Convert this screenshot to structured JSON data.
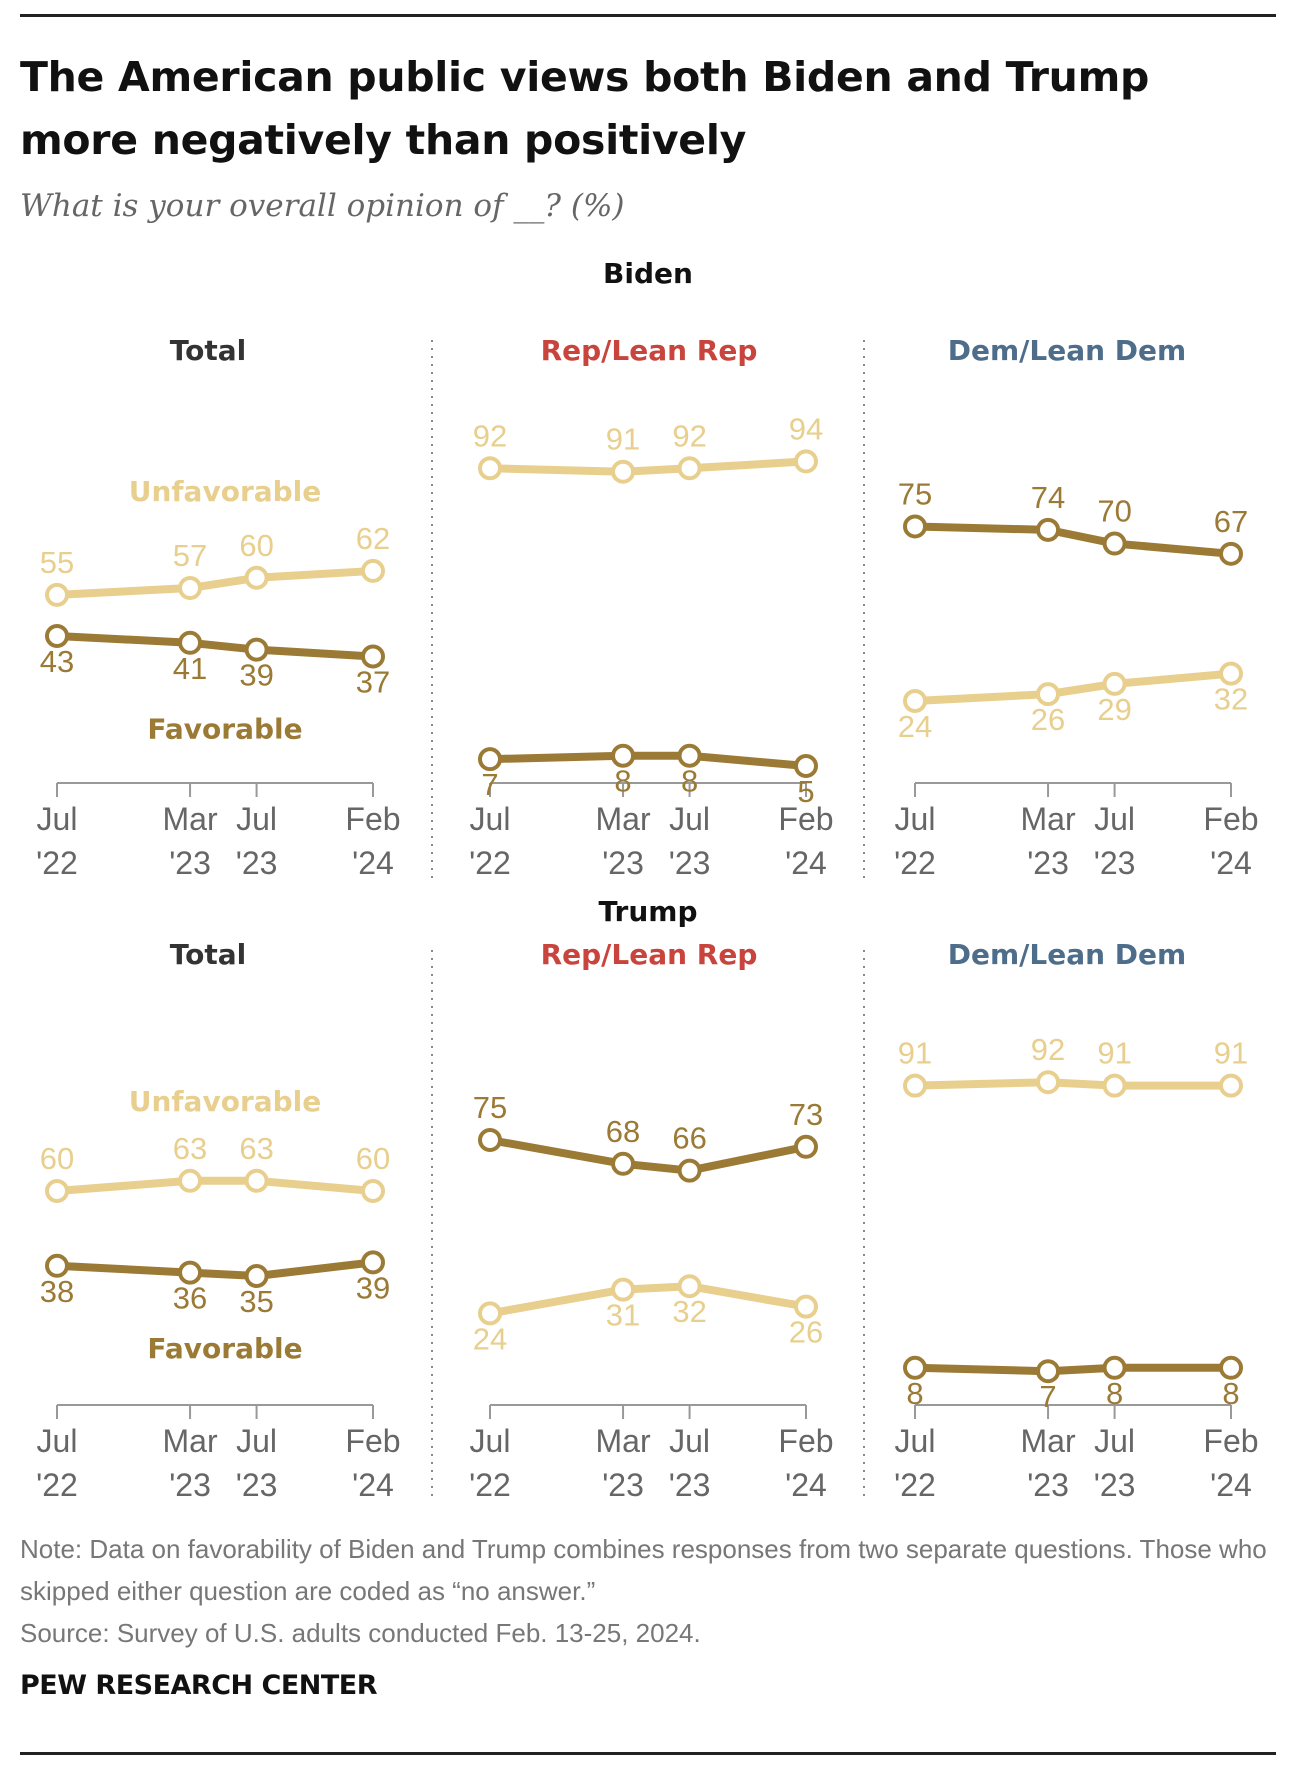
{
  "title": "The American public views both Biden and Trump more negatively than positively",
  "subtitle": "What is your overall opinion of __? (%)",
  "note": "Note: Data on favorability of Biden and Trump combines responses from two separate questions. Those who skipped either question are coded as “no answer.”",
  "source": "Source: Survey of U.S. adults conducted Feb. 13-25, 2024.",
  "brand": "PEW RESEARCH CENTER",
  "colors": {
    "unfavorable": "#e8cf8e",
    "favorable": "#9b7a35",
    "rep": "#c8443c",
    "dem": "#4e6d8a",
    "axis": "#999999",
    "label": "#333333"
  },
  "chart_data": [
    {
      "type": "line",
      "title": "Biden",
      "x": [
        "Jul '22",
        "Mar '23",
        "Jul '23",
        "Feb '24"
      ],
      "x_months": [
        0,
        8,
        12,
        19
      ],
      "panels": [
        {
          "label": "Total",
          "group": "total",
          "series": [
            {
              "name": "Unfavorable",
              "values": [
                55,
                57,
                60,
                62
              ]
            },
            {
              "name": "Favorable",
              "values": [
                43,
                41,
                39,
                37
              ]
            }
          ]
        },
        {
          "label": "Rep/Lean Rep",
          "group": "rep",
          "series": [
            {
              "name": "Unfavorable",
              "values": [
                92,
                91,
                92,
                94
              ]
            },
            {
              "name": "Favorable",
              "values": [
                7,
                8,
                8,
                5
              ]
            }
          ]
        },
        {
          "label": "Dem/Lean Dem",
          "group": "dem",
          "series": [
            {
              "name": "Unfavorable",
              "values": [
                24,
                26,
                29,
                32
              ]
            },
            {
              "name": "Favorable",
              "values": [
                75,
                74,
                70,
                67
              ]
            }
          ]
        }
      ]
    },
    {
      "type": "line",
      "title": "Trump",
      "x": [
        "Jul '22",
        "Mar '23",
        "Jul '23",
        "Feb '24"
      ],
      "x_months": [
        0,
        8,
        12,
        19
      ],
      "panels": [
        {
          "label": "Total",
          "group": "total",
          "series": [
            {
              "name": "Unfavorable",
              "values": [
                60,
                63,
                63,
                60
              ]
            },
            {
              "name": "Favorable",
              "values": [
                38,
                36,
                35,
                39
              ]
            }
          ]
        },
        {
          "label": "Rep/Lean Rep",
          "group": "rep",
          "series": [
            {
              "name": "Unfavorable",
              "values": [
                24,
                31,
                32,
                26
              ]
            },
            {
              "name": "Favorable",
              "values": [
                75,
                68,
                66,
                73
              ]
            }
          ]
        },
        {
          "label": "Dem/Lean Dem",
          "group": "dem",
          "series": [
            {
              "name": "Unfavorable",
              "values": [
                91,
                92,
                91,
                91
              ]
            },
            {
              "name": "Favorable",
              "values": [
                8,
                7,
                8,
                8
              ]
            }
          ]
        }
      ]
    }
  ]
}
